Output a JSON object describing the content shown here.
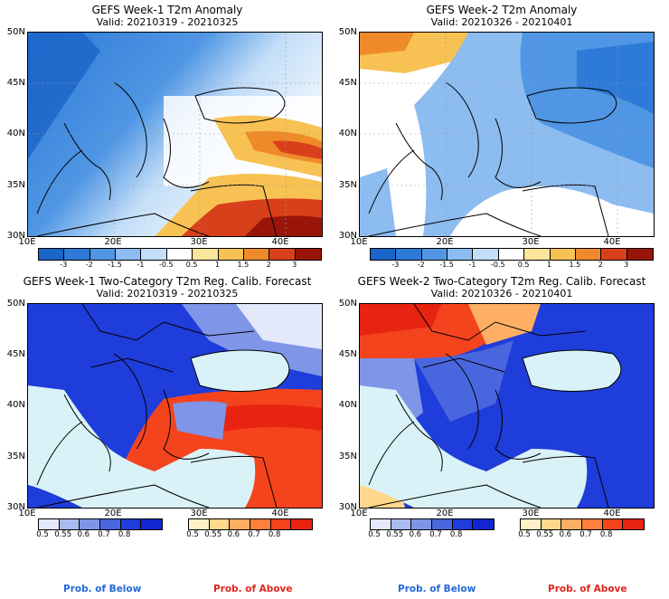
{
  "panels": [
    {
      "title": "GEFS Week-1 T2m Anomaly",
      "valid": "Valid: 20210319 - 20210325"
    },
    {
      "title": "GEFS Week-2 T2m Anomaly",
      "valid": "Valid: 20210326 - 20210401"
    },
    {
      "title": "GEFS Week-1 Two-Category T2m Reg. Calib. Forecast",
      "valid": "Valid: 20210319 - 20210325"
    },
    {
      "title": "GEFS Week-2 Two-Category T2m Reg. Calib. Forecast",
      "valid": "Valid: 20210326 - 20210401"
    }
  ],
  "lat_labels": [
    "50N",
    "45N",
    "40N",
    "35N",
    "30N"
  ],
  "lon_labels": [
    "10E",
    "20E",
    "30E",
    "40E"
  ],
  "anomaly_scale": {
    "ticks": [
      "-3",
      "-2",
      "-1.5",
      "-1",
      "-0.5",
      "0.5",
      "1",
      "1.5",
      "2",
      "3"
    ],
    "colors": [
      "#1b64c8",
      "#2d7ad8",
      "#5096e4",
      "#8cbcf0",
      "#c3def8",
      "#ffffff",
      "#fbe59c",
      "#f7c253",
      "#ef8a2a",
      "#d8401b",
      "#9a1509"
    ]
  },
  "prob_scale": {
    "ticks": [
      "0.5",
      "0.55",
      "0.6",
      "0.7",
      "0.8"
    ],
    "below_colors": [
      "#e3e9fb",
      "#a9bbf0",
      "#7e95e8",
      "#4a66de",
      "#1f3ddb",
      "#1126d2"
    ],
    "above_colors": [
      "#fff2c8",
      "#ffd88e",
      "#ffaf64",
      "#ff7f3c",
      "#f4441e",
      "#e8230f"
    ]
  },
  "prob_legend": {
    "below": "Prob. of Below",
    "above": "Prob. of Above"
  },
  "colors": {
    "sea_light": "#d9f2f7",
    "below_text": "#2268d6",
    "above_text": "#e0251a"
  }
}
